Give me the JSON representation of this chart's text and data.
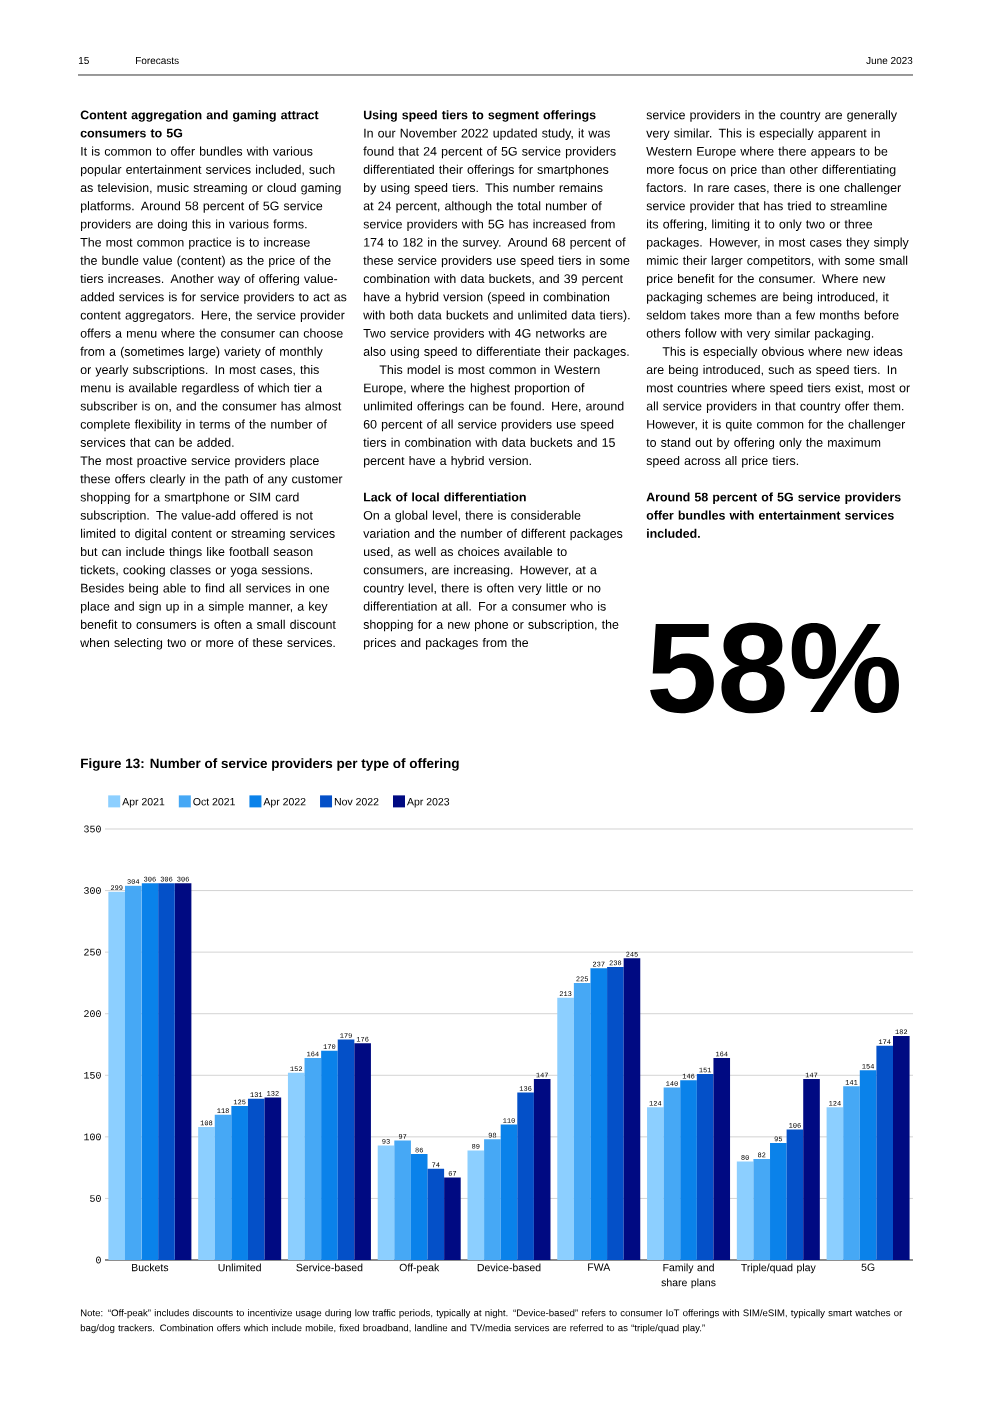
{
  "chart_data": {
    "type": "bar",
    "title": "Figure 13: Number of service providers per type of offering",
    "categories": [
      "Buckets",
      "Unlimited",
      "Service-based",
      "Off-peak",
      "Device-based",
      "FWA",
      "Family and share plans",
      "Triple/quad play",
      "5G"
    ],
    "series": [
      {
        "name": "Apr 2021",
        "color": "#8ccfff",
        "values": [
          299,
          108,
          152,
          93,
          89,
          213,
          124,
          80,
          124
        ]
      },
      {
        "name": "Oct 2021",
        "color": "#46a8f5",
        "values": [
          304,
          118,
          164,
          97,
          98,
          225,
          140,
          82,
          141
        ]
      },
      {
        "name": "Apr 2022",
        "color": "#0a82ea",
        "values": [
          306,
          125,
          170,
          86,
          110,
          237,
          146,
          95,
          154
        ]
      },
      {
        "name": "Nov 2022",
        "color": "#0450c8",
        "values": [
          306,
          131,
          179,
          74,
          136,
          238,
          151,
          106,
          174
        ]
      },
      {
        "name": "Apr 2023",
        "color": "#000a82",
        "values": [
          306,
          132,
          176,
          67,
          147,
          245,
          164,
          147,
          182
        ]
      }
    ],
    "ylim": [
      0,
      350
    ],
    "yticks": [
      0,
      50,
      100,
      150,
      200,
      250,
      300,
      350
    ],
    "grid": "y",
    "legend": "top left",
    "data_labels": true,
    "annotations": [
      "15",
      "Forecasts",
      "June 2023",
      "Content aggregation and gaming attract consumers to 5G",
      "It is common to offer bundles with various popular entertainment services included, such as television, music streaming or cloud gaming platforms. Around 58 percent of 5G service providers are doing this in various forms. The most common practice is to increase the bundle value (content) as the price of the tiers increases. Another way of offering value-added services is for service providers to act as content aggregators. Here, the service provider offers a menu where the consumer can choose from a (sometimes large) variety of monthly or yearly subscriptions. In most cases, this menu is available regardless of which tier a subscriber is on, and the consumer has almost complete flexibility in terms of the number of services that can be added.",
      "The most proactive service providers place these offers clearly in the path of any customer shopping for a smartphone or SIM card subscription. The value-add offered is not limited to digital content or streaming services but can include things like football season tickets, cooking classes or yoga sessions. Besides being able to find all services in one place and sign up in a simple manner, a key benefit to consumers is often a small discount when selecting two or more of these services.",
      "Using speed tiers to segment offerings",
      "In our November 2022 updated study, it was found that 24 percent of 5G service providers differentiated their offerings for smartphones by using speed tiers. This number remains at 24 percent, although the total number of service providers with 5G has increased from 174 to 182 in the survey. Around 68 percent of these service providers use speed tiers in some combination with data buckets, and 39 percent have a hybrid version (speed in combination with both data buckets and unlimited data tiers). Two service providers with 4G networks are also using speed to differentiate their packages.",
      "This model is most common in Western Europe, where the highest proportion of unlimited offerings can be found. Here, around 60 percent of all service providers use speed tiers in combination with data buckets and 15 percent have a hybrid version.",
      "Lack of local differentiation",
      "On a global level, there is considerable variation and the number of different packages used, as well as choices available to consumers, are increasing. However, at a country level, there is often very little or no differentiation at all. For a consumer who is shopping for a new phone or subscription, the prices and packages from the",
      "service providers in the country are generally very similar. This is especially apparent in Western Europe where there appears to be more focus on price than other differentiating factors. In rare cases, there is one challenger service provider that has tried to streamline its offering, limiting it to only two or three packages. However, in most cases they simply mimic their larger competitors, with some small price benefit for the consumer. Where new packaging schemes are being introduced, it seldom takes more than a few months before others follow with very similar packaging.",
      "This is especially obvious where new ideas are being introduced, such as speed tiers. In most countries where speed tiers exist, most or all service providers in that country offer them. However, it is quite common for the challenger to stand out by offering only the maximum speed across all price tiers.",
      "Around 58 percent of 5G service providers offer bundles with entertainment services included.",
      "58%",
      "Note: “Off-peak” includes discounts to incentivize usage during low traffic periods, typically at night. “Device-based” refers to consumer IoT offerings with SIM/eSIM, typically smart watches or bag/dog trackers. Combination offers which include mobile, fixed broadband, landline and TV/media services are referred to as “triple/quad play.”"
    ]
  }
}
